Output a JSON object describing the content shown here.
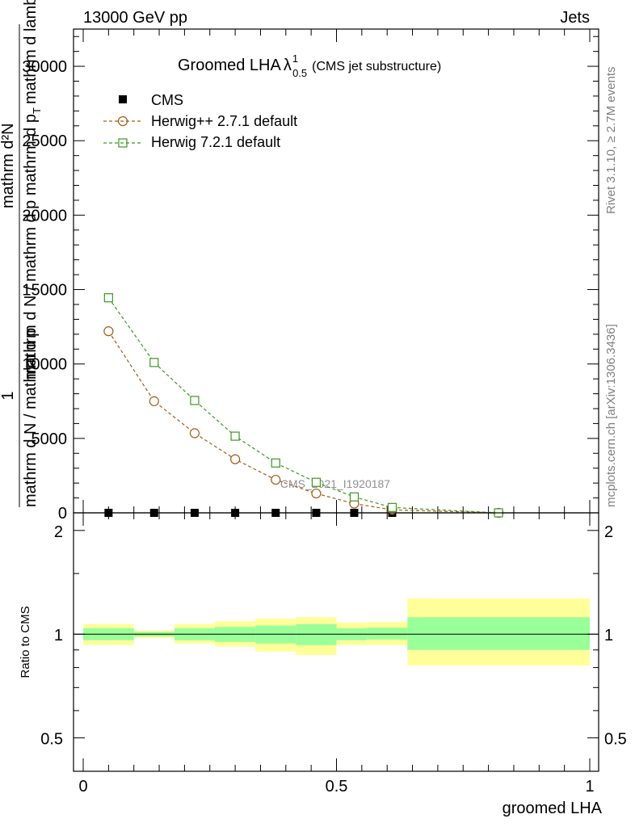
{
  "header": {
    "left": "13000 GeV pp",
    "right": "Jets"
  },
  "title": {
    "main": "Groomed LHA",
    "lambda": "λ",
    "sup": "1",
    "sub": "0.5",
    "note": "(CMS jet substructure)"
  },
  "side_labels": {
    "rivet": "Rivet 3.1.10, ≥ 2.7M events",
    "site": "mcplots.cern.ch [arXiv:1306.3436]"
  },
  "watermark": "CMS_2021_I1920187",
  "ylabel_main": {
    "one": "1",
    "dn": "mathrm d N / mathrm d p",
    "denom": "mathrm d N / mathrm d p",
    "t1": "mathrm d²N",
    "t2": "mathrm d p",
    "t3": "mathrm d lambda",
    "tsub": "T"
  },
  "ylabel_ratio": "Ratio to CMS",
  "xlabel": "groomed LHA",
  "legend": [
    {
      "name": "CMS",
      "color": "#000000",
      "marker": "square-filled"
    },
    {
      "name": "Herwig++ 2.7.1 default",
      "color": "#a65a12",
      "marker": "circle-open"
    },
    {
      "name": "Herwig 7.2.1 default",
      "color": "#3a9a1e",
      "marker": "square-open"
    }
  ],
  "chart_data": [
    {
      "type": "scatter",
      "xlim": [
        0,
        1
      ],
      "ylim": [
        0,
        32500
      ],
      "yticks": [
        0,
        5000,
        10000,
        15000,
        20000,
        25000,
        30000
      ],
      "ytick_labels": [
        "0",
        "5000",
        "10000",
        "15000",
        "20000",
        "25000",
        "30000"
      ],
      "series": [
        {
          "name": "CMS",
          "x": [
            0.05,
            0.14,
            0.22,
            0.3,
            0.38,
            0.46,
            0.535,
            0.61,
            0.82
          ],
          "values": [
            0,
            0,
            0,
            0,
            0,
            0,
            0,
            0,
            0
          ]
        },
        {
          "name": "Herwig++ 2.7.1 default",
          "x": [
            0.05,
            0.14,
            0.22,
            0.3,
            0.38,
            0.46,
            0.535,
            0.61,
            0.82
          ],
          "values": [
            12200,
            7500,
            5350,
            3600,
            2220,
            1300,
            620,
            200,
            0
          ]
        },
        {
          "name": "Herwig 7.2.1 default",
          "x": [
            0.05,
            0.14,
            0.22,
            0.3,
            0.38,
            0.46,
            0.535,
            0.61,
            0.82
          ],
          "values": [
            14450,
            10100,
            7550,
            5150,
            3350,
            2050,
            1070,
            360,
            0
          ]
        }
      ]
    },
    {
      "type": "area",
      "xlim": [
        0,
        1
      ],
      "ylim": [
        0.4,
        2.25
      ],
      "yscale": "log",
      "yticks": [
        0.5,
        1,
        2
      ],
      "ytick_labels": [
        "0.5",
        "1",
        "2"
      ],
      "xticks": [
        0,
        0.5,
        1
      ],
      "xtick_labels": [
        "0",
        "0.5",
        "1"
      ],
      "bins": [
        {
          "x": [
            0.0,
            0.1
          ],
          "inner": [
            0.96,
            1.04
          ],
          "outer": [
            0.93,
            1.07
          ]
        },
        {
          "x": [
            0.1,
            0.18
          ],
          "inner": [
            0.985,
            1.015
          ],
          "outer": [
            0.975,
            1.025
          ]
        },
        {
          "x": [
            0.18,
            0.26
          ],
          "inner": [
            0.96,
            1.04
          ],
          "outer": [
            0.94,
            1.07
          ]
        },
        {
          "x": [
            0.26,
            0.34
          ],
          "inner": [
            0.95,
            1.05
          ],
          "outer": [
            0.92,
            1.09
          ]
        },
        {
          "x": [
            0.34,
            0.42
          ],
          "inner": [
            0.94,
            1.06
          ],
          "outer": [
            0.89,
            1.11
          ]
        },
        {
          "x": [
            0.42,
            0.5
          ],
          "inner": [
            0.93,
            1.07
          ],
          "outer": [
            0.87,
            1.12
          ]
        },
        {
          "x": [
            0.5,
            0.56
          ],
          "inner": [
            0.96,
            1.04
          ],
          "outer": [
            0.93,
            1.08
          ]
        },
        {
          "x": [
            0.56,
            0.64
          ],
          "inner": [
            0.965,
            1.045
          ],
          "outer": [
            0.93,
            1.085
          ]
        },
        {
          "x": [
            0.64,
            1.0
          ],
          "inner": [
            0.9,
            1.12
          ],
          "outer": [
            0.81,
            1.27
          ]
        }
      ],
      "reference": 1
    }
  ],
  "colors": {
    "inner_band": "#99ff99",
    "outer_band": "#ffff99"
  }
}
